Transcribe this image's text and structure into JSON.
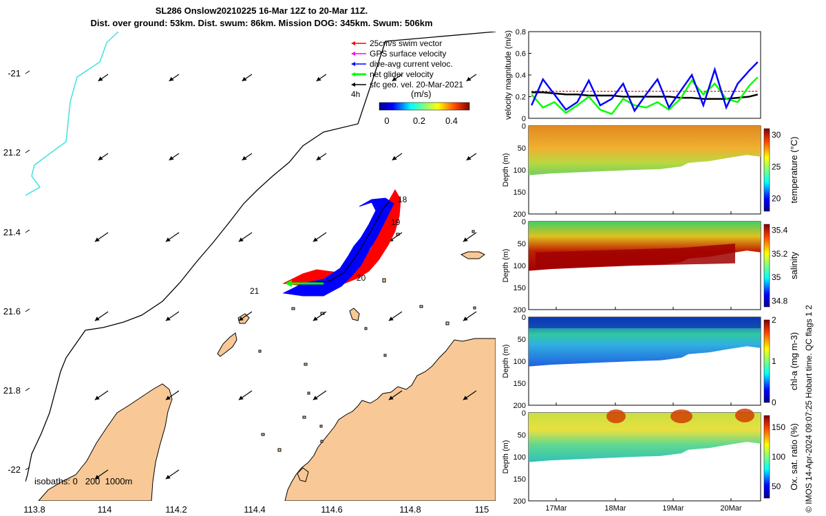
{
  "title": {
    "line1": "SL286 Onslow20210225 16-Mar 12Z to 20-Mar 11Z.",
    "line2": "Dist. over ground: 53km. Dist. swum: 86km. Mission DOG: 345km. Swum: 506km"
  },
  "map": {
    "lon_ticks": [
      "113.8",
      "114",
      "114.2",
      "114.4",
      "114.6",
      "114.8",
      "115"
    ],
    "lat_ticks": [
      "-21",
      "21.2",
      "21.4",
      "21.6",
      "21.8",
      "-22"
    ],
    "legend": [
      {
        "label": "25cm/s swim vector",
        "color": "#ff0000"
      },
      {
        "label": "GPS surface velocity",
        "color": "#ff00ff"
      },
      {
        "label": "dive-avg current veloc.",
        "color": "#0000ff"
      },
      {
        "label": "net glider velocity",
        "color": "#00ff00"
      },
      {
        "label": "sfc geo. vel. 20-Mar-2021",
        "color": "#000000"
      }
    ],
    "time_step_label": "4h",
    "colorbar_unit": "(m/s)",
    "colorbar_ticks": [
      "0",
      "0.2",
      "0.4"
    ],
    "isobath_label": "isobaths: 0   200  1000m",
    "track_labels": [
      "18",
      "19",
      "20",
      "21"
    ],
    "colors": {
      "land": "#f8c896",
      "coast_cyan": "#40e0e0",
      "track_red": "#ff0000",
      "track_blue": "#0000ff"
    }
  },
  "chart_data": [
    {
      "type": "line",
      "title": "",
      "ylabel": "velocity magnitude (m/s)",
      "ylim": [
        0,
        0.8
      ],
      "yticks": [
        "0",
        "0.2",
        "0.4",
        "0.6",
        "0.8"
      ],
      "x": [
        16.5,
        16.7,
        16.9,
        17.1,
        17.3,
        17.5,
        17.7,
        17.9,
        18.1,
        18.3,
        18.5,
        18.7,
        18.9,
        19.1,
        19.3,
        19.5,
        19.7,
        19.9,
        20.1,
        20.3,
        20.45
      ],
      "series": [
        {
          "name": "dive-avg current",
          "color": "#0000ff",
          "values": [
            0.12,
            0.36,
            0.22,
            0.08,
            0.15,
            0.35,
            0.12,
            0.18,
            0.32,
            0.07,
            0.22,
            0.36,
            0.1,
            0.25,
            0.4,
            0.12,
            0.45,
            0.1,
            0.32,
            0.44,
            0.52
          ]
        },
        {
          "name": "net glider velocity",
          "color": "#00ff00",
          "values": [
            0.22,
            0.1,
            0.15,
            0.05,
            0.12,
            0.2,
            0.08,
            0.04,
            0.18,
            0.12,
            0.1,
            0.15,
            0.08,
            0.18,
            0.35,
            0.22,
            0.32,
            0.18,
            0.15,
            0.3,
            0.38
          ]
        },
        {
          "name": "25cm/s swim vector",
          "color": "#ff0000",
          "values": [
            0.25,
            0.25,
            0.25,
            0.25,
            0.25,
            0.25,
            0.25,
            0.25,
            0.25,
            0.25,
            0.25,
            0.25,
            0.25,
            0.25,
            0.25,
            0.25,
            0.25,
            0.25,
            0.25,
            0.25,
            0.25
          ]
        },
        {
          "name": "sfc geo. vel.",
          "color": "#000000",
          "values": [
            0.24,
            0.24,
            0.23,
            0.22,
            0.22,
            0.21,
            0.21,
            0.21,
            0.2,
            0.2,
            0.2,
            0.2,
            0.2,
            0.19,
            0.19,
            0.18,
            0.18,
            0.18,
            0.19,
            0.2,
            0.22
          ]
        }
      ]
    },
    {
      "type": "heatmap",
      "ylabel": "Depth (m)",
      "cblabel": "temperature (°C)",
      "yticks": [
        "0",
        "50",
        "100",
        "150",
        "200"
      ],
      "cbticks": [
        "20",
        "25",
        "30"
      ],
      "clim": [
        18,
        31
      ]
    },
    {
      "type": "heatmap",
      "ylabel": "Depth (m)",
      "cblabel": "salinity",
      "yticks": [
        "0",
        "50",
        "100",
        "150",
        "200"
      ],
      "cbticks": [
        "34.8",
        "35",
        "35.2",
        "35.4"
      ],
      "clim": [
        34.75,
        35.45
      ]
    },
    {
      "type": "heatmap",
      "ylabel": "Depth (m)",
      "cblabel": "chl-a (mg m-3)",
      "yticks": [
        "0",
        "50",
        "100",
        "150",
        "200"
      ],
      "cbticks": [
        "0",
        "1",
        "2"
      ],
      "clim": [
        0,
        2
      ]
    },
    {
      "type": "heatmap",
      "ylabel": "Depth (m)",
      "cblabel": "Ox. sat. ratio (%)",
      "yticks": [
        "0",
        "50",
        "100",
        "150",
        "200"
      ],
      "cbticks": [
        "50",
        "100",
        "150"
      ],
      "clim": [
        30,
        170
      ],
      "xticks": [
        "17Mar",
        "18Mar",
        "19Mar",
        "20Mar"
      ]
    }
  ],
  "side_note": "© IMOS 14-Apr-2024 09:07:25 Hobart time. QC flags 1  2"
}
